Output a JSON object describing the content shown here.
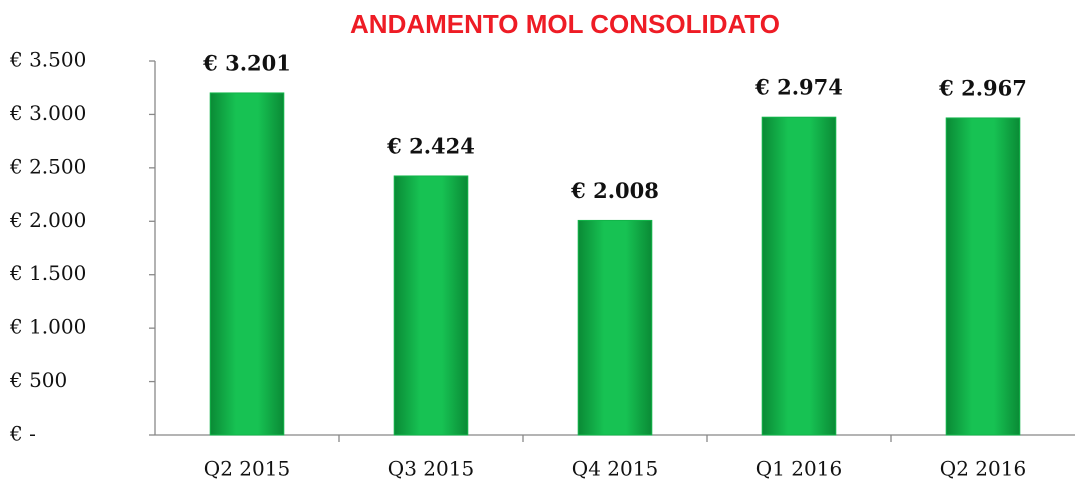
{
  "chart_data": {
    "type": "bar",
    "title": "ANDAMENTO MOL CONSOLIDATO",
    "categories": [
      "Q2 2015",
      "Q3 2015",
      "Q4 2015",
      "Q1 2016",
      "Q2 2016"
    ],
    "values": [
      3201,
      2424,
      2008,
      2974,
      2967
    ],
    "value_labels": [
      "€ 3.201",
      "€ 2.424",
      "€ 2.008",
      "€ 2.974",
      "€ 2.967"
    ],
    "color": "#12b54a",
    "ylim": [
      0,
      3500
    ],
    "yticks": [
      {
        "value": 0,
        "label": "€ -"
      },
      {
        "value": 500,
        "label": "€ 500"
      },
      {
        "value": 1000,
        "label": "€ 1.000"
      },
      {
        "value": 1500,
        "label": "€ 1.500"
      },
      {
        "value": 2000,
        "label": "€ 2.000"
      },
      {
        "value": 2500,
        "label": "€ 2.500"
      },
      {
        "value": 3000,
        "label": "€ 3.000"
      },
      {
        "value": 3500,
        "label": "€ 3.500"
      }
    ],
    "grid": false
  }
}
